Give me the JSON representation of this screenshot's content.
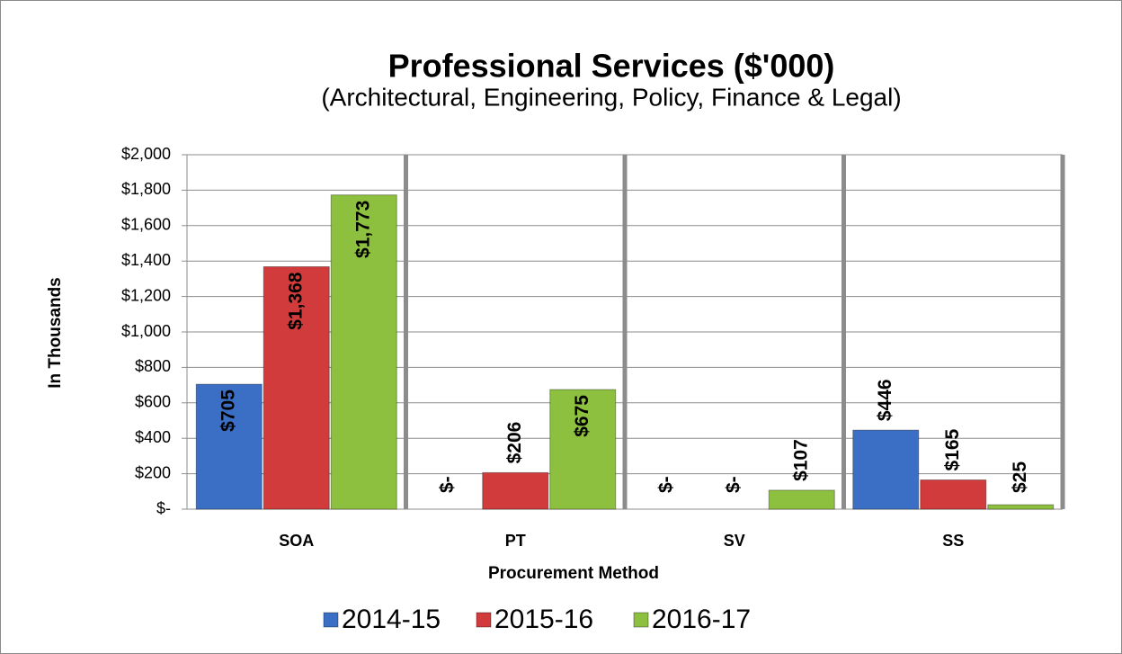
{
  "chart_data": {
    "type": "bar",
    "title": "Professional Services ($'000)",
    "subtitle": "(Architectural, Engineering, Policy, Finance & Legal)",
    "y_label": "In Thousands",
    "x_label": "Procurement Method",
    "categories": [
      "SOA",
      "PT",
      "SV",
      "SS"
    ],
    "series": [
      {
        "name": "2014-15",
        "color": "#3b6fc6",
        "values": [
          705,
          0,
          0,
          446
        ],
        "value_labels": [
          "$705",
          "$-",
          "$-",
          "$446"
        ]
      },
      {
        "name": "2015-16",
        "color": "#d23b3b",
        "values": [
          1368,
          206,
          0,
          165
        ],
        "value_labels": [
          "$1,368",
          "$206",
          "$-",
          "$165"
        ]
      },
      {
        "name": "2016-17",
        "color": "#8dc03f",
        "values": [
          1773,
          675,
          107,
          25
        ],
        "value_labels": [
          "$1,773",
          "$675",
          "$107",
          "$25"
        ]
      }
    ],
    "ylim": [
      0,
      2000
    ],
    "yticks": [
      {
        "value": 0,
        "label": "$-"
      },
      {
        "value": 200,
        "label": "$200"
      },
      {
        "value": 400,
        "label": "$400"
      },
      {
        "value": 600,
        "label": "$600"
      },
      {
        "value": 800,
        "label": "$800"
      },
      {
        "value": 1000,
        "label": "$1,000"
      },
      {
        "value": 1200,
        "label": "$1,200"
      },
      {
        "value": 1400,
        "label": "$1,400"
      },
      {
        "value": 1600,
        "label": "$1,600"
      },
      {
        "value": 1800,
        "label": "$1,800"
      },
      {
        "value": 2000,
        "label": "$2,000"
      }
    ],
    "grid": true,
    "legend": "bottom"
  }
}
